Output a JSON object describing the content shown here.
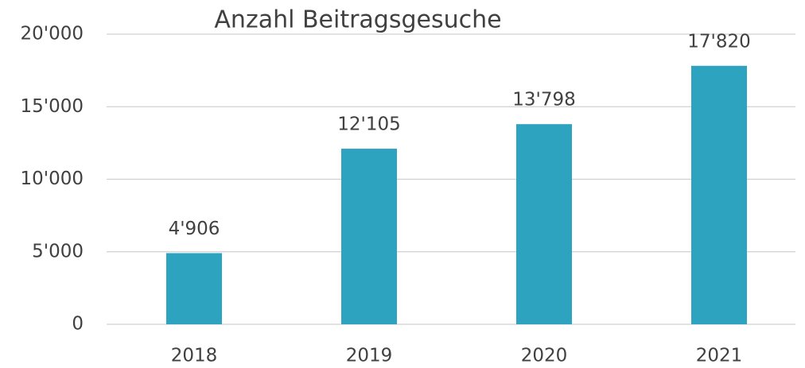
{
  "chart_data": {
    "type": "bar",
    "title": "Anzahl Beitragsgesuche",
    "categories": [
      "2018",
      "2019",
      "2020",
      "2021"
    ],
    "values": [
      4906,
      12105,
      13798,
      17820
    ],
    "value_labels": [
      "4'906",
      "12'105",
      "13'798",
      "17'820"
    ],
    "color": "#2ea3bf",
    "ylim": [
      0,
      20000
    ],
    "yticks": [
      0,
      {
        "value": 5000,
        "label": "5'000"
      },
      {
        "value": 10000,
        "label": "10'000"
      },
      {
        "value": 15000,
        "label": "15'000"
      },
      {
        "value": 20000,
        "label": "20'000"
      }
    ],
    "grid": true
  }
}
